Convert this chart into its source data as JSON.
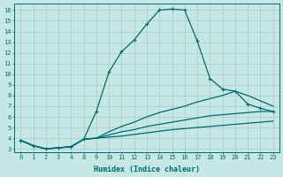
{
  "xlabel": "Humidex (Indice chaleur)",
  "bg_color": "#c5e8e5",
  "grid_color": "#aed0cc",
  "line_color": "#006b6b",
  "xtick_labels": [
    "0",
    "1",
    "2",
    "3",
    "4",
    "8",
    "9",
    "10",
    "11",
    "12",
    "13",
    "14",
    "15",
    "16",
    "17",
    "18",
    "19",
    "20",
    "21",
    "22",
    "23"
  ],
  "ytick_labels": [
    "3",
    "4",
    "5",
    "6",
    "7",
    "8",
    "9",
    "10",
    "11",
    "12",
    "13",
    "14",
    "15",
    "16"
  ],
  "ytick_vals": [
    3,
    4,
    5,
    6,
    7,
    8,
    9,
    10,
    11,
    12,
    13,
    14,
    15,
    16
  ],
  "ylim": [
    2.7,
    16.6
  ],
  "n_xcols": 21,
  "line1_y": [
    3.8,
    3.3,
    3.0,
    3.1,
    3.2,
    3.9,
    6.5,
    10.2,
    12.1,
    13.2,
    14.7,
    16.0,
    16.1,
    16.0,
    13.1,
    9.6,
    8.6,
    8.4,
    7.2,
    6.8,
    6.5
  ],
  "line2_y": [
    3.8,
    3.3,
    3.0,
    3.1,
    3.2,
    3.9,
    4.0,
    4.6,
    5.1,
    5.5,
    6.0,
    6.4,
    6.7,
    7.0,
    7.4,
    7.7,
    8.0,
    8.4,
    8.0,
    7.5,
    7.0
  ],
  "line3_y": [
    3.8,
    3.3,
    3.0,
    3.1,
    3.2,
    3.9,
    4.0,
    4.3,
    4.6,
    4.8,
    5.1,
    5.3,
    5.5,
    5.7,
    5.9,
    6.1,
    6.2,
    6.3,
    6.4,
    6.5,
    6.5
  ],
  "line4_y": [
    3.8,
    3.3,
    3.0,
    3.1,
    3.2,
    3.9,
    4.0,
    4.1,
    4.2,
    4.35,
    4.5,
    4.65,
    4.8,
    4.9,
    5.0,
    5.1,
    5.2,
    5.3,
    5.4,
    5.5,
    5.6
  ]
}
